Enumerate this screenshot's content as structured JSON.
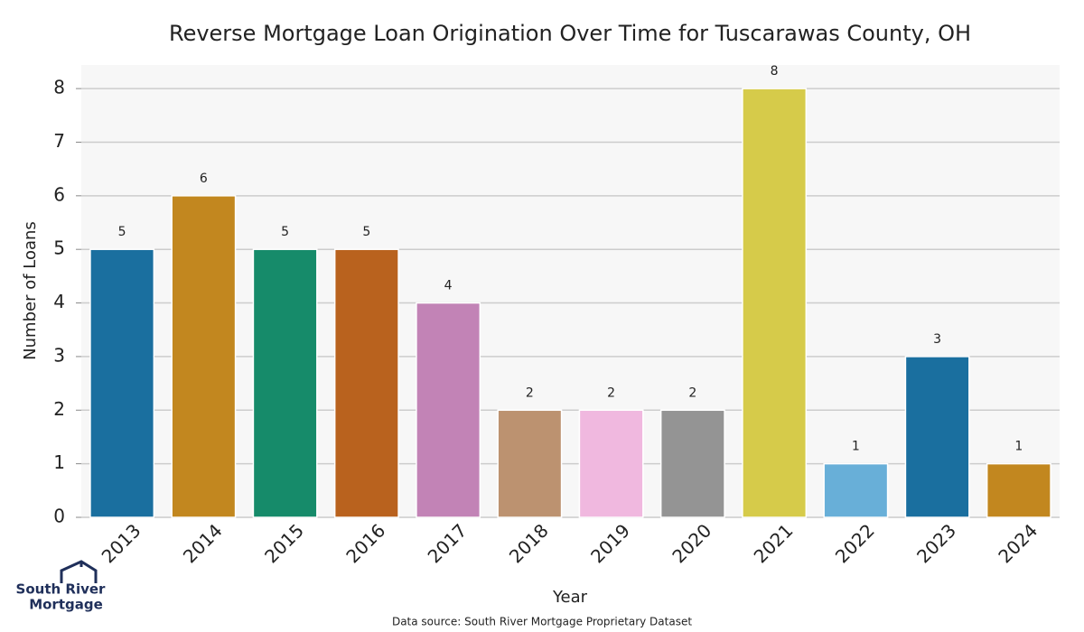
{
  "chart_data": {
    "type": "bar",
    "title": "Reverse Mortgage Loan Origination Over Time for Tuscarawas County, OH",
    "x_label": "Year",
    "y_label": "Number of Loans",
    "categories": [
      "2013",
      "2014",
      "2015",
      "2016",
      "2017",
      "2018",
      "2019",
      "2020",
      "2021",
      "2022",
      "2023",
      "2024"
    ],
    "values": [
      5,
      6,
      5,
      5,
      4,
      2,
      2,
      2,
      8,
      1,
      3,
      1
    ],
    "colors": [
      "#1a6f9f",
      "#c2871f",
      "#168b6a",
      "#b9621e",
      "#c283b6",
      "#bc9270",
      "#f0b8df",
      "#949494",
      "#d6cb4a",
      "#68afd8",
      "#1a6f9f",
      "#c2871f"
    ],
    "ylim": [
      0,
      8.44
    ],
    "yticks": [
      0,
      1,
      2,
      3,
      4,
      5,
      6,
      7,
      8
    ],
    "grid": true,
    "source": "Data source: South River Mortgage Proprietary Dataset"
  },
  "logo": {
    "line1": "South River",
    "line2": "Mortgage"
  }
}
